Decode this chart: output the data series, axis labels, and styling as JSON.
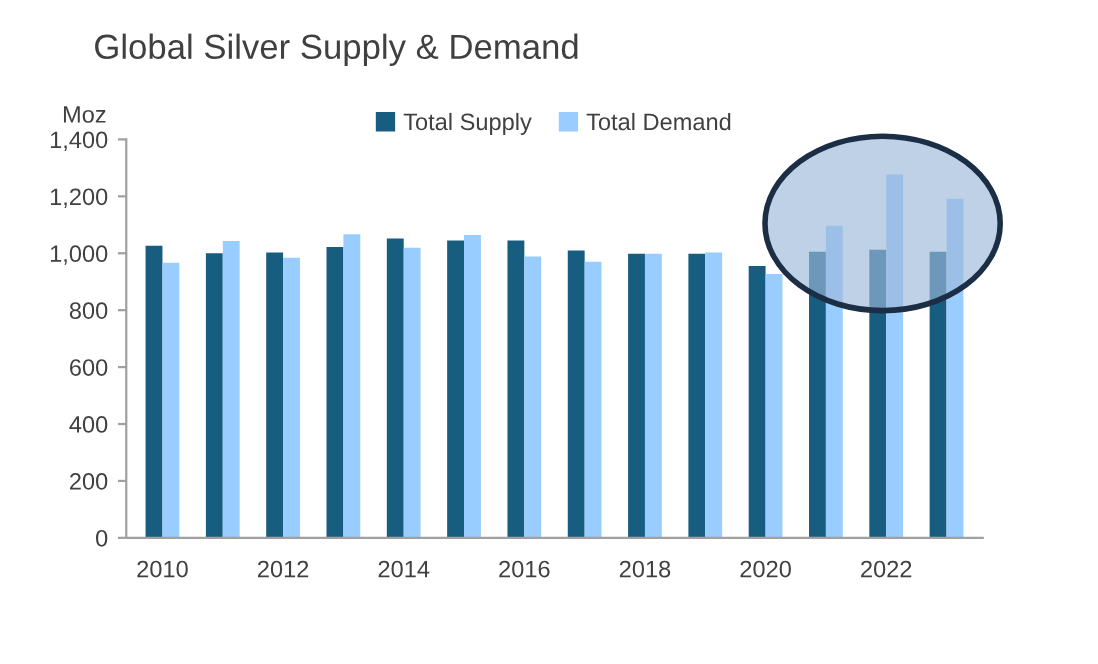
{
  "chart_data": {
    "type": "bar",
    "title": "Global Silver Supply & Demand",
    "ylabel": "Moz",
    "categories": [
      "2010",
      null,
      "2012",
      null,
      "2014",
      null,
      "2016",
      null,
      "2018",
      null,
      "2020",
      null,
      "2022",
      null
    ],
    "series": [
      {
        "name": "Total Supply",
        "color": "#175d80",
        "values": [
          1026,
          1000,
          1003,
          1022,
          1052,
          1045,
          1045,
          1010,
          998,
          998,
          955,
          1005,
          1012,
          1005
        ]
      },
      {
        "name": "Total Demand",
        "color": "#99ccff",
        "values": [
          967,
          1043,
          984,
          1067,
          1019,
          1064,
          989,
          970,
          998,
          1003,
          927,
          1097,
          1277,
          1192
        ]
      }
    ],
    "ylim": [
      0,
      1400
    ],
    "yticks": [
      {
        "value": 0,
        "label": "0"
      },
      {
        "value": 200,
        "label": "200"
      },
      {
        "value": 400,
        "label": "400"
      },
      {
        "value": 600,
        "label": "600"
      },
      {
        "value": 800,
        "label": "800"
      },
      {
        "value": 1000,
        "label": "1,000"
      },
      {
        "value": 1200,
        "label": "1,200"
      },
      {
        "value": 1400,
        "label": "1,400"
      }
    ],
    "grid": false,
    "legend": "top"
  }
}
